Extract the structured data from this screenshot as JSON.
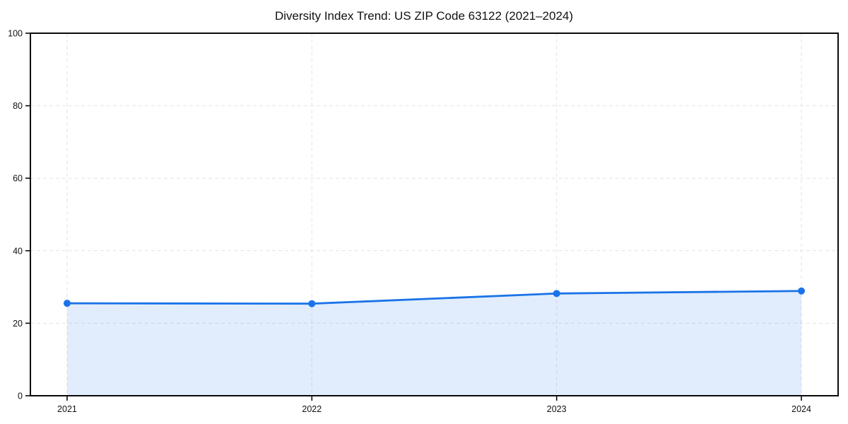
{
  "page": {
    "background_color": "#ffffff"
  },
  "chart_data": {
    "type": "line",
    "title": "Diversity Index Trend: US ZIP Code 63122 (2021–2024)",
    "x": [
      2021,
      2022,
      2023,
      2024
    ],
    "values": [
      25.5,
      25.4,
      28.2,
      28.9
    ],
    "x_tick_labels": [
      "2021",
      "2022",
      "2023",
      "2024"
    ],
    "y_ticks": [
      0,
      20,
      40,
      60,
      80,
      100
    ],
    "y_tick_labels": [
      "0",
      "20",
      "40",
      "60",
      "80",
      "100"
    ],
    "xlabel": "",
    "ylabel": "",
    "xlim": [
      2020.85,
      2024.15
    ],
    "ylim": [
      0,
      100
    ],
    "grid": "dashed",
    "legend": "none",
    "area_fill": true,
    "marker": "circle",
    "line_color": "#1a73e8",
    "fill_color": "#1a73e8",
    "fill_opacity": 0.13,
    "grid_color": "#e4e4e4",
    "axis_color": "#0a0a0a",
    "text_color": "#111111"
  }
}
